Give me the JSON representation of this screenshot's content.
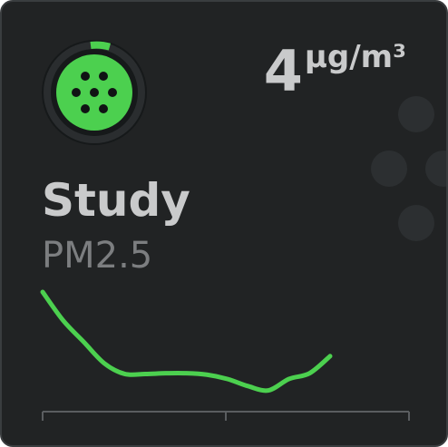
{
  "sensor": {
    "name": "Study",
    "measure": "PM2.5",
    "value": "4",
    "unit": "µg/m³"
  },
  "colors": {
    "accent": "#4cd04f",
    "background": "#212324",
    "text_primary": "#c9cacb",
    "text_secondary": "#7c7e80"
  },
  "icons": {
    "status": "air-quality-dots-icon",
    "more": "more-dots-icon"
  },
  "gauge": {
    "fraction": 0.04
  },
  "chart_data": {
    "type": "line",
    "title": "",
    "xlabel": "",
    "ylabel": "",
    "series": [
      {
        "values": [
          20,
          16,
          13,
          10,
          8.5,
          8.5,
          8.6,
          8.6,
          8.4,
          7.8,
          6.8,
          6.2,
          7.8,
          8.6,
          11
        ]
      }
    ],
    "ylim": [
      5,
      20
    ],
    "grid": false
  }
}
